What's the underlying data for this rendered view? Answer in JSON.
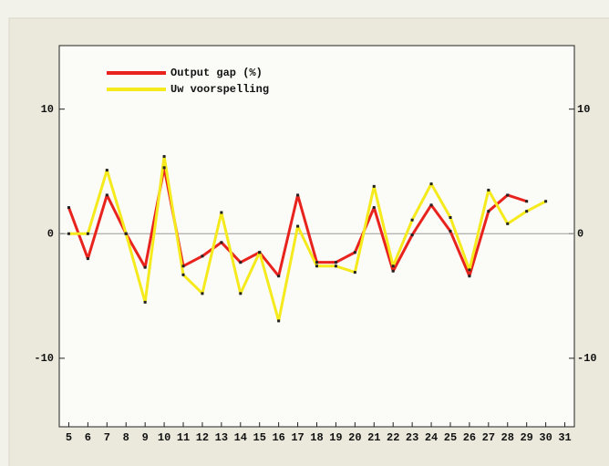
{
  "chart_data": {
    "type": "line",
    "x": [
      5,
      6,
      7,
      8,
      9,
      10,
      11,
      12,
      13,
      14,
      15,
      16,
      17,
      18,
      19,
      20,
      21,
      22,
      23,
      24,
      25,
      26,
      27,
      28,
      29,
      30,
      31
    ],
    "xlim": [
      4.5,
      31.5
    ],
    "xticks": [
      5,
      6,
      7,
      8,
      9,
      10,
      11,
      12,
      13,
      14,
      15,
      16,
      17,
      18,
      19,
      20,
      21,
      22,
      23,
      24,
      25,
      26,
      27,
      28,
      29,
      30,
      31
    ],
    "ylim": [
      -15.5,
      15.1
    ],
    "yticks": [
      -10,
      0,
      10
    ],
    "legend": "top-left",
    "series": [
      {
        "name": "Output gap (%)",
        "color": "#e8231e",
        "values": [
          2.1,
          -2.0,
          3.1,
          0,
          -2.7,
          5.3,
          -2.6,
          -1.8,
          -0.7,
          -2.3,
          -1.5,
          -3.4,
          3.1,
          -2.3,
          -2.3,
          -1.5,
          2.1,
          -3.0,
          -0.1,
          2.3,
          0.2,
          -3.4,
          1.8,
          3.1,
          2.6,
          null,
          null
        ]
      },
      {
        "name": "Uw voorspelling",
        "color": "#f5ea1c",
        "values": [
          0,
          0,
          5.1,
          0,
          -5.5,
          6.2,
          -3.3,
          -4.8,
          1.7,
          -4.8,
          -1.5,
          -7.0,
          0.6,
          -2.6,
          -2.6,
          -3.1,
          3.8,
          -2.6,
          1.1,
          4.0,
          1.3,
          -2.9,
          3.5,
          0.8,
          1.8,
          2.6,
          null
        ]
      }
    ]
  }
}
